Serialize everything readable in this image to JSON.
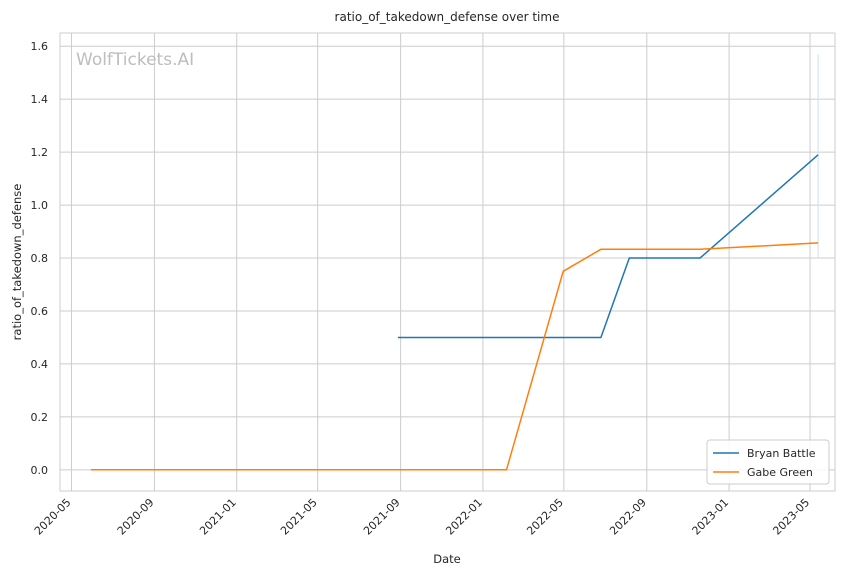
{
  "chart_data": {
    "type": "line",
    "title": "ratio_of_takedown_defense over time",
    "xlabel": "Date",
    "ylabel": "ratio_of_takedown_defense",
    "watermark": "WolfTickets.AI",
    "x_ticks": [
      "2020-05",
      "2020-09",
      "2021-01",
      "2021-05",
      "2021-09",
      "2022-01",
      "2022-05",
      "2022-09",
      "2023-01",
      "2023-05"
    ],
    "y_ticks": [
      "0.0",
      "0.2",
      "0.4",
      "0.6",
      "0.8",
      "1.0",
      "1.2",
      "1.4",
      "1.6"
    ],
    "xlim": [
      "2020-04-14",
      "2023-06-07"
    ],
    "ylim": [
      -0.08,
      1.65
    ],
    "grid": true,
    "legend_position": "lower-right",
    "series": [
      {
        "name": "Bryan Battle",
        "color": "#1f77b4",
        "x": [
          "2021-08-28",
          "2022-06-25",
          "2022-08-06",
          "2022-11-19",
          "2023-05-13"
        ],
        "y": [
          0.5,
          0.5,
          0.8,
          0.8,
          1.19
        ]
      },
      {
        "name": "Gabe Green",
        "color": "#ff7f0e",
        "x": [
          "2020-05-30",
          "2022-02-05",
          "2022-04-30",
          "2022-06-25",
          "2022-11-19",
          "2023-05-13"
        ],
        "y": [
          0.0,
          0.0,
          0.75,
          0.833,
          0.833,
          0.857
        ]
      }
    ]
  }
}
